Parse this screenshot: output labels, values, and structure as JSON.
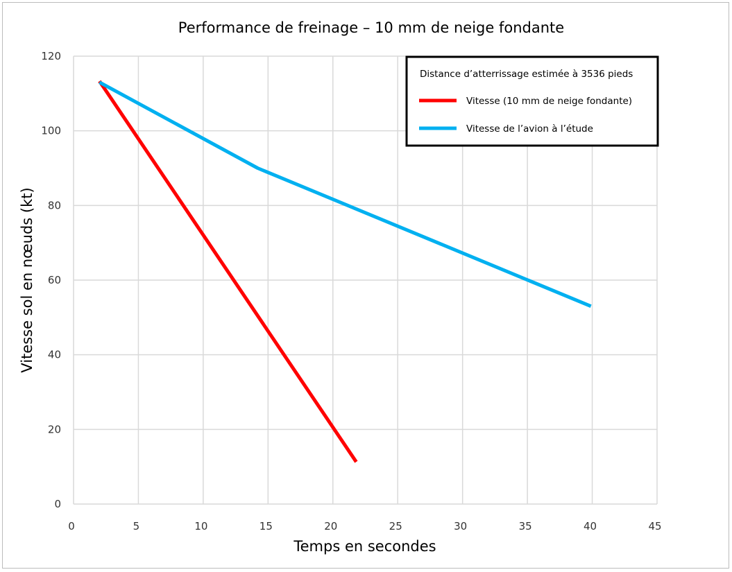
{
  "chart_data": {
    "type": "line",
    "title": "Performance de freinage – 10 mm de neige fondante",
    "xlabel": "Temps en secondes",
    "ylabel": "Vitesse sol en nœuds (kt)",
    "xlim": [
      0,
      45
    ],
    "ylim": [
      0,
      120
    ],
    "xticks": [
      0,
      5,
      10,
      15,
      20,
      25,
      30,
      35,
      40,
      45
    ],
    "yticks": [
      0,
      20,
      40,
      60,
      80,
      100,
      120
    ],
    "grid": true,
    "legend": {
      "placement": "top-right",
      "title": "Distance d’atterrissage estimée à 3536 pieds"
    },
    "series": [
      {
        "name": "Vitesse (10 mm de neige fondante)",
        "color": "#ff0000",
        "points": [
          [
            2.0,
            113.3
          ],
          [
            21.8,
            11.3
          ]
        ]
      },
      {
        "name": "Vitesse de l’avion à l’étude",
        "color": "#00b0f0",
        "points": [
          [
            2.0,
            113.0
          ],
          [
            14.2,
            90.0
          ],
          [
            39.9,
            53.0
          ]
        ]
      }
    ]
  }
}
